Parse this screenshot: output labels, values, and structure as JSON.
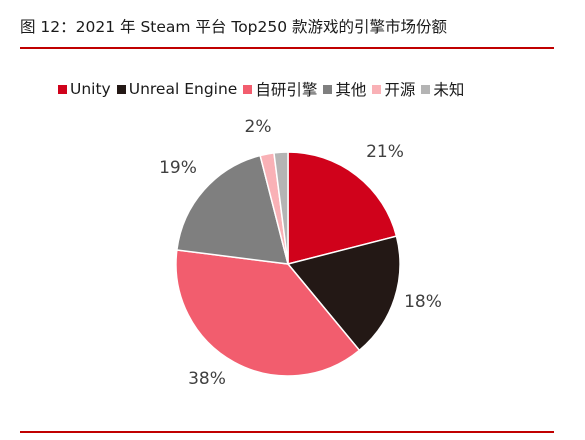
{
  "title": "图 12：2021 年 Steam 平台 Top250 款游戏的引擎市场份额",
  "chart_data": {
    "type": "pie",
    "title": "",
    "legend_position": "top",
    "start_angle_deg": 0,
    "direction": "clockwise",
    "slices": [
      {
        "name": "Unity",
        "value": 21,
        "label": "21%",
        "color": "#d0021b"
      },
      {
        "name": "Unreal Engine",
        "value": 18,
        "label": "18%",
        "color": "#231815"
      },
      {
        "name": "自研引擎",
        "value": 38,
        "label": "38%",
        "color": "#f25d6e"
      },
      {
        "name": "其他",
        "value": 19,
        "label": "19%",
        "color": "#7f7f7f"
      },
      {
        "name": "开源",
        "value": 2,
        "label": "2%",
        "color": "#f9b1b6"
      },
      {
        "name": "未知",
        "value": 2,
        "label": "",
        "color": "#b4b4b4"
      }
    ]
  }
}
